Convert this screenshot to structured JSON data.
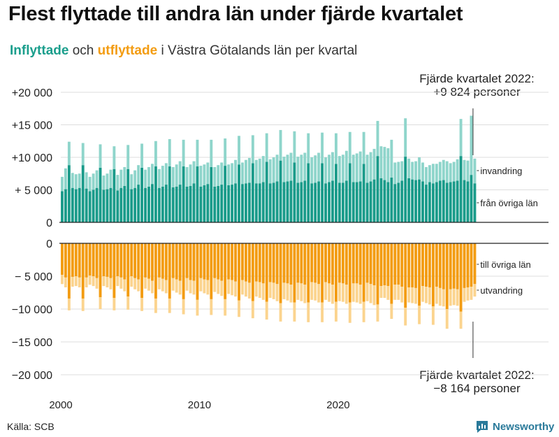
{
  "title": "Flest flyttade till andra län under fjärde kvartalet",
  "subtitle": {
    "in_word": "Inflyttade",
    "and_word": "och",
    "out_word": "utflyttade",
    "rest": "i Västra Götalands län per kvartal"
  },
  "annotations": {
    "top_line1": "Fjärde kvartalet 2022:",
    "top_line2": "+9 824 personer",
    "bottom_line1": "Fjärde kvartalet 2022:",
    "bottom_line2": "−8 164 personer"
  },
  "source": "Källa: SCB",
  "brand": "Newsworthy",
  "colors": {
    "in_dark": "#1a9b8a",
    "in_light": "#8fd5cb",
    "out_dark": "#f39c12",
    "out_light": "#fbd48f",
    "grid": "#dddddd",
    "axis": "#222222"
  },
  "chart_data": {
    "type": "bar",
    "stacked": true,
    "title": "Flest flyttade till andra län under fjärde kvartalet",
    "start_year": 2000,
    "end": "2022 Q4",
    "x_tick_labels": [
      "2000",
      "2010",
      "2020"
    ],
    "y_tick_labels": [
      "+20 000",
      "+15 000",
      "+10 000",
      "+ 5 000",
      "0",
      "0",
      "− 5 000",
      "−10 000",
      "−15 000",
      "−20 000"
    ],
    "ylim_upper": [
      0,
      20000
    ],
    "ylim_lower": [
      -20000,
      0
    ],
    "series_labels": {
      "invandring": "invandring",
      "fran_ovriga_lan": "från övriga län",
      "till_ovriga_lan": "till övriga län",
      "utvandring": "utvandring"
    },
    "series": [
      {
        "name": "från övriga län",
        "values": [
          4800,
          5100,
          8800,
          5300,
          5100,
          5300,
          8800,
          5200,
          4800,
          5000,
          5300,
          8400,
          5000,
          5100,
          5300,
          8200,
          4900,
          5300,
          5600,
          8200,
          5100,
          5300,
          5800,
          8400,
          5300,
          5500,
          5900,
          8600,
          5300,
          5500,
          5800,
          8600,
          5400,
          5500,
          5800,
          8600,
          5500,
          5600,
          6000,
          8600,
          5500,
          5700,
          5900,
          8500,
          5500,
          5600,
          5800,
          8700,
          5700,
          5800,
          6000,
          8900,
          5900,
          6000,
          6100,
          9100,
          6000,
          6000,
          6200,
          9300,
          6000,
          6100,
          6300,
          9500,
          6200,
          6300,
          6400,
          9200,
          6100,
          6200,
          6400,
          9100,
          6000,
          6100,
          6300,
          9100,
          6000,
          6200,
          6400,
          9000,
          6100,
          6100,
          6400,
          9100,
          6200,
          6200,
          6300,
          9000,
          6100,
          6300,
          6600,
          10200,
          6800,
          6500,
          6200,
          6900,
          5900,
          6100,
          6400,
          10100,
          6800,
          6600,
          6500,
          6600,
          6300,
          5800,
          6200,
          6000,
          6200,
          6400,
          6500,
          6100,
          6200,
          6300,
          6400,
          10200,
          6500,
          6300,
          7300,
          6000
        ]
      },
      {
        "name": "invandring",
        "values": [
          2200,
          3200,
          3600,
          2300,
          2300,
          2200,
          3400,
          2500,
          2200,
          2500,
          2700,
          3600,
          2200,
          2400,
          2800,
          3500,
          2400,
          2800,
          2900,
          3700,
          2300,
          2700,
          3000,
          3700,
          2800,
          3000,
          3100,
          3900,
          2900,
          3200,
          3300,
          4200,
          3100,
          3400,
          3600,
          4100,
          3000,
          3300,
          3400,
          4100,
          3200,
          3200,
          3300,
          4200,
          3000,
          3200,
          3400,
          4200,
          3200,
          3300,
          3600,
          4400,
          3300,
          3600,
          3800,
          4300,
          3600,
          3800,
          4000,
          4400,
          3700,
          3900,
          4100,
          4700,
          3900,
          4100,
          4300,
          4800,
          4000,
          4200,
          4300,
          4600,
          4000,
          4200,
          4400,
          4700,
          4000,
          4200,
          4400,
          4700,
          4100,
          4300,
          4600,
          4800,
          4200,
          4400,
          4600,
          4900,
          4300,
          4500,
          4700,
          5400,
          4900,
          5100,
          5200,
          5800,
          3300,
          3200,
          3000,
          5900,
          3000,
          2700,
          2900,
          3400,
          2900,
          2700,
          2600,
          3000,
          2800,
          2900,
          3100,
          3300,
          2900,
          3000,
          3300,
          5700,
          3100,
          3200,
          9100,
          3800
        ]
      },
      {
        "name": "till övriga län",
        "values": [
          -4800,
          -5200,
          -8400,
          -5100,
          -5000,
          -5200,
          -8400,
          -5200,
          -4900,
          -5000,
          -5300,
          -8200,
          -5000,
          -5100,
          -5300,
          -8300,
          -5000,
          -5200,
          -5500,
          -8100,
          -5000,
          -5300,
          -5500,
          -8300,
          -5200,
          -5400,
          -5700,
          -8400,
          -5200,
          -5400,
          -5600,
          -8400,
          -5300,
          -5500,
          -5700,
          -8500,
          -5300,
          -5600,
          -5700,
          -8600,
          -5300,
          -5500,
          -5600,
          -8500,
          -5300,
          -5500,
          -5700,
          -8500,
          -5500,
          -5600,
          -5800,
          -8700,
          -5600,
          -5800,
          -6000,
          -8800,
          -5800,
          -5900,
          -6100,
          -8900,
          -5900,
          -6000,
          -6200,
          -9100,
          -6000,
          -6100,
          -6300,
          -9000,
          -6000,
          -6100,
          -6300,
          -9000,
          -5900,
          -6000,
          -6200,
          -9000,
          -5900,
          -6100,
          -6300,
          -8900,
          -6000,
          -6100,
          -6300,
          -9000,
          -6100,
          -6100,
          -6300,
          -8900,
          -6000,
          -6200,
          -6400,
          -9300,
          -6500,
          -6400,
          -6500,
          -9200,
          -6300,
          -6300,
          -6600,
          -9800,
          -6700,
          -6700,
          -6800,
          -9500,
          -6500,
          -6600,
          -6700,
          -9600,
          -6600,
          -6800,
          -7000,
          -10000,
          -7000,
          -6900,
          -7000,
          -10400,
          -6800,
          -6700,
          -6600,
          -6200
        ]
      },
      {
        "name": "utvandring",
        "values": [
          -1400,
          -1500,
          -1800,
          -1500,
          -1500,
          -1500,
          -1900,
          -1500,
          -1400,
          -1500,
          -1600,
          -1800,
          -1500,
          -1600,
          -1700,
          -1900,
          -1500,
          -1700,
          -1800,
          -2000,
          -1600,
          -1700,
          -1800,
          -2000,
          -1700,
          -1800,
          -1900,
          -2200,
          -1800,
          -1900,
          -2000,
          -2200,
          -1900,
          -2000,
          -2100,
          -2300,
          -1900,
          -2000,
          -2100,
          -2400,
          -2000,
          -2100,
          -2200,
          -2400,
          -2100,
          -2200,
          -2300,
          -2500,
          -2200,
          -2300,
          -2300,
          -2500,
          -2200,
          -2300,
          -2400,
          -2600,
          -2300,
          -2400,
          -2500,
          -2700,
          -2400,
          -2500,
          -2600,
          -2800,
          -2500,
          -2600,
          -2700,
          -2900,
          -2600,
          -2700,
          -2800,
          -3000,
          -2700,
          -2700,
          -2800,
          -3000,
          -2700,
          -2800,
          -2900,
          -3000,
          -2800,
          -2800,
          -2900,
          -3100,
          -2800,
          -2900,
          -2900,
          -3100,
          -2800,
          -2900,
          -3000,
          -2600,
          -1800,
          -1900,
          -2100,
          -2300,
          -2300,
          -2300,
          -2400,
          -2700,
          -2300,
          -2400,
          -2400,
          -2800,
          -2400,
          -2500,
          -2600,
          -2800,
          -2600,
          -2700,
          -2600,
          -3000,
          -2500,
          -2500,
          -2500,
          -2600,
          -2100,
          -2000,
          -2000,
          -1900
        ]
      }
    ]
  }
}
